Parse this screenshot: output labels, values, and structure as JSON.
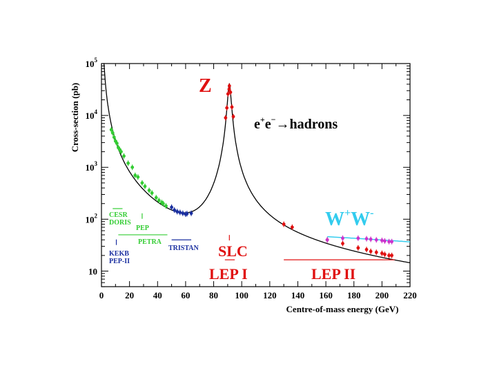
{
  "chart_data": {
    "type": "scatter",
    "title": "",
    "xlabel": "Centre-of-mass energy (GeV)",
    "ylabel": "Cross-section (pb)",
    "xlim": [
      0,
      220
    ],
    "ylim": [
      5,
      100000
    ],
    "yscale": "log",
    "grid": false,
    "x_ticks": [
      "0",
      "20",
      "40",
      "60",
      "80",
      "100",
      "120",
      "140",
      "160",
      "180",
      "200",
      "220"
    ],
    "y_tick_labels": [
      {
        "base": "10",
        "exp": "5",
        "value": 100000
      },
      {
        "base": "10",
        "exp": "4",
        "value": 10000
      },
      {
        "base": "10",
        "exp": "3",
        "value": 1000
      },
      {
        "base": "10",
        "exp": "2",
        "value": 100
      },
      {
        "base": "10",
        "exp": "",
        "value": 10
      }
    ],
    "series": [
      {
        "name": "CESR DORIS",
        "color": "#33cc33",
        "points": [
          [
            7,
            5300
          ],
          [
            8,
            4600
          ],
          [
            9,
            3800
          ],
          [
            10,
            3200
          ],
          [
            11,
            2900
          ],
          [
            12,
            2400
          ],
          [
            13,
            2200
          ],
          [
            14,
            2000
          ],
          [
            16,
            1650
          ],
          [
            19,
            1200
          ],
          [
            22,
            1000
          ],
          [
            24,
            700
          ],
          [
            26,
            650
          ],
          [
            29,
            500
          ],
          [
            31,
            430
          ],
          [
            34,
            360
          ],
          [
            36,
            320
          ],
          [
            39,
            260
          ],
          [
            41,
            230
          ],
          [
            43,
            210
          ],
          [
            44,
            200
          ],
          [
            46,
            180
          ]
        ]
      },
      {
        "name": "TRISTAN",
        "color": "#1a2fa0",
        "points": [
          [
            50,
            170
          ],
          [
            52,
            150
          ],
          [
            54,
            140
          ],
          [
            56,
            135
          ],
          [
            58,
            130
          ],
          [
            60,
            125
          ],
          [
            61,
            128
          ],
          [
            64,
            130
          ]
        ]
      },
      {
        "name": "LEP I",
        "color": "#e01010",
        "points": [
          [
            88.5,
            9000
          ],
          [
            89.4,
            14000
          ],
          [
            90.2,
            26000
          ],
          [
            91.2,
            37000
          ],
          [
            92.0,
            28000
          ],
          [
            93.0,
            14500
          ],
          [
            94.0,
            9500
          ],
          [
            91.0,
            32000
          ]
        ]
      },
      {
        "name": "LEP II",
        "color": "#e01010",
        "points": [
          [
            130,
            80
          ],
          [
            136,
            70
          ],
          [
            161,
            40
          ],
          [
            172,
            34
          ],
          [
            183,
            28
          ],
          [
            189,
            26
          ],
          [
            192,
            24
          ],
          [
            196,
            23
          ],
          [
            200,
            22
          ],
          [
            202,
            21
          ],
          [
            205,
            20
          ],
          [
            207,
            20
          ]
        ]
      },
      {
        "name": "W+W-",
        "color": "#cc33cc",
        "points": [
          [
            161,
            40
          ],
          [
            172,
            43
          ],
          [
            183,
            43
          ],
          [
            189,
            42
          ],
          [
            192,
            41
          ],
          [
            196,
            40
          ],
          [
            200,
            39
          ],
          [
            202,
            38
          ],
          [
            205,
            37
          ],
          [
            207,
            37
          ]
        ]
      }
    ],
    "annotations": {
      "resonance": "Z",
      "process_parts": [
        "e",
        "+",
        "e",
        "−",
        "→hadrons"
      ],
      "ww": [
        "W",
        "+",
        "W",
        "-"
      ],
      "slc": "SLC",
      "lep1": "LEP I",
      "lep2": "LEP II",
      "cesr": "CESR",
      "doris": "DORIS",
      "pep": "PEP",
      "petra": "PETRA",
      "tristan": "TRISTAN",
      "kekb": "KEKB",
      "pep2": "PEP-II"
    },
    "colors": {
      "green": "#33cc33",
      "blue": "#1a2fa0",
      "red": "#e01010",
      "magenta": "#cc33cc",
      "cyan": "#33ccee",
      "curve": "#000000"
    }
  }
}
